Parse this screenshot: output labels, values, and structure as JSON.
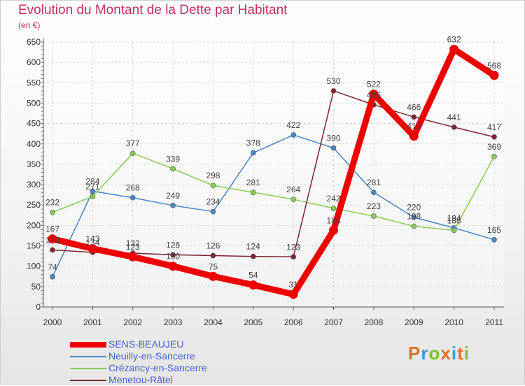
{
  "title": "Evolution du Montant de la Dette par Habitant",
  "unit": "(en €)",
  "logo": "Proxiti",
  "chart_data": {
    "type": "line",
    "title": "Evolution du Montant de la Dette par Habitant",
    "ylabel": "(en €)",
    "x": [
      2000,
      2001,
      2002,
      2003,
      2004,
      2005,
      2006,
      2007,
      2008,
      2009,
      2010,
      2011
    ],
    "ylim": [
      0,
      650
    ],
    "yticks": [
      0,
      50,
      100,
      150,
      200,
      250,
      300,
      350,
      400,
      450,
      500,
      550,
      600,
      650
    ],
    "grid": true,
    "legend_position": "bottom-left",
    "series": [
      {
        "name": "SENS-BEAUJEU",
        "color": "#ee0000",
        "values": [
          167,
          143,
          123,
          100,
          75,
          54,
          31,
          188,
          522,
          419,
          632,
          568
        ]
      },
      {
        "name": "Neuilly-en-Sancerre",
        "color": "#4a86c5",
        "values": [
          74,
          284,
          268,
          249,
          234,
          378,
          422,
          390,
          281,
          220,
          194,
          165
        ]
      },
      {
        "name": "Crézancy-en-Sancerre",
        "color": "#88cc55",
        "values": [
          232,
          271,
          377,
          339,
          298,
          281,
          264,
          242,
          223,
          198,
          188,
          369
        ]
      },
      {
        "name": "Menetou-Râtel",
        "color": "#7a2530",
        "values": [
          140,
          134,
          132,
          128,
          126,
          124,
          123,
          530,
          496,
          466,
          441,
          417
        ]
      }
    ]
  }
}
